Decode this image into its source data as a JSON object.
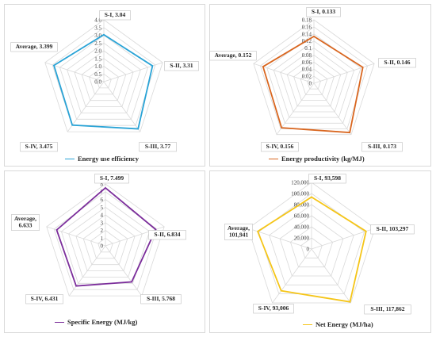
{
  "chart_data": [
    {
      "type": "radar",
      "categories": [
        "S-I",
        "S-II",
        "S-III",
        "S-IV",
        "Average"
      ],
      "series": [
        {
          "name": "Energy use efficiency",
          "values": [
            3.04,
            3.31,
            3.77,
            3.475,
            3.399
          ]
        }
      ],
      "data_labels": [
        "S-I, 3.04",
        "S-II, 3.31",
        "S-III, 3.77",
        "S-IV, 3.475",
        "Average, 3.399"
      ],
      "ticks": [
        "0.0",
        "0.5",
        "1.0",
        "1.5",
        "2.0",
        "2.5",
        "3.0",
        "3.5",
        "4.0"
      ],
      "rlim": [
        0,
        4
      ],
      "color": "#29a3d6",
      "legend": "bottom"
    },
    {
      "type": "radar",
      "categories": [
        "S-I",
        "S-II",
        "S-III",
        "S-IV",
        "Average"
      ],
      "series": [
        {
          "name": "Energy productivity (kg/MJ)",
          "values": [
            0.133,
            0.146,
            0.173,
            0.156,
            0.152
          ]
        }
      ],
      "data_labels": [
        "S-I, 0.133",
        "S-II, 0.146",
        "S-III, 0.173",
        "S-IV, 0.156",
        "Average, 0.152"
      ],
      "ticks": [
        "0",
        "0.02",
        "0.04",
        "0.06",
        "0.08",
        "0.1",
        "0.12",
        "0.14",
        "0.16",
        "0.18"
      ],
      "rlim": [
        0,
        0.18
      ],
      "color": "#d9661f",
      "legend": "bottom"
    },
    {
      "type": "radar",
      "categories": [
        "S-I",
        "S-II",
        "S-III",
        "S-IV",
        "Average"
      ],
      "series": [
        {
          "name": "Specific Energy (MJ/kg)",
          "values": [
            7.499,
            6.834,
            5.768,
            6.431,
            6.633
          ]
        }
      ],
      "data_labels": [
        "S-I, 7.499",
        "S-II, 6.834",
        "S-III, 5.768",
        "S-IV, 6.431",
        "Average,\n6.633"
      ],
      "ticks": [
        "0",
        "1",
        "2",
        "3",
        "4",
        "5",
        "6",
        "7",
        "8"
      ],
      "rlim": [
        0,
        8
      ],
      "color": "#7b2d9b",
      "legend": "bottom"
    },
    {
      "type": "radar",
      "categories": [
        "S-I",
        "S-II",
        "S-III",
        "S-IV",
        "Average"
      ],
      "series": [
        {
          "name": "Net Energy (MJ/ha)",
          "values": [
            93598,
            103297,
            117862,
            93006,
            101941
          ]
        }
      ],
      "data_labels": [
        "S-I, 93,598",
        "S-II, 103,297",
        "S-III, 117,862",
        "S-IV, 93,006",
        "Average,\n101,941"
      ],
      "ticks": [
        "0",
        "20,000",
        "40,000",
        "60,000",
        "80,000",
        "100,000",
        "120,000"
      ],
      "rlim": [
        0,
        120000
      ],
      "color": "#f5c518",
      "legend": "bottom"
    }
  ]
}
